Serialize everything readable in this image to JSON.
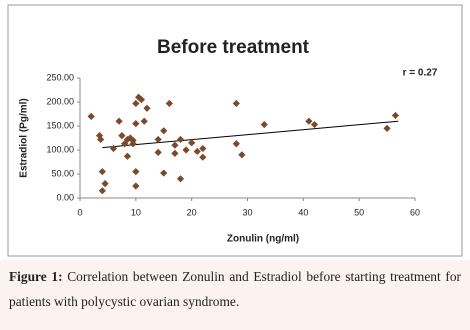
{
  "chart_data": {
    "type": "scatter",
    "title": "Before treatment",
    "annotation": "r = 0.27",
    "x_label": "Zonulin (ng/ml)",
    "y_label": "Estradiol (Pg/ml)",
    "xlim": [
      0,
      60
    ],
    "xticks": [
      0,
      10,
      20,
      30,
      40,
      50,
      60
    ],
    "ylim": [
      0,
      250
    ],
    "yticks": [
      {
        "value": 0,
        "label": "0.00"
      },
      {
        "value": 50,
        "label": "50.00"
      },
      {
        "value": 100,
        "label": "100.00"
      },
      {
        "value": 150,
        "label": "150.00"
      },
      {
        "value": 200,
        "label": "200.00"
      },
      {
        "value": 250,
        "label": "250.00"
      }
    ],
    "grid": false,
    "color": "#7b4a2c",
    "marker": "diamond",
    "x": [
      2,
      3.5,
      3.7,
      4,
      4,
      4.5,
      6,
      7,
      7.5,
      8,
      8.5,
      8.5,
      9,
      9.5,
      9.5,
      10,
      10,
      10,
      10,
      10.5,
      11,
      11.5,
      12,
      14,
      14,
      15,
      15,
      16,
      17,
      17,
      18,
      18,
      19,
      20,
      21,
      22,
      22,
      28,
      28,
      29,
      33,
      41,
      42,
      55,
      56.5
    ],
    "y": [
      170,
      130,
      122,
      55,
      15,
      30,
      103,
      160,
      130,
      113,
      87,
      122,
      125,
      113,
      120,
      155,
      197,
      55,
      25,
      210,
      205,
      160,
      187,
      95,
      122,
      140,
      52,
      197,
      110,
      93,
      122,
      40,
      100,
      115,
      97,
      103,
      85,
      197,
      113,
      90,
      153,
      160,
      153,
      145,
      172
    ],
    "trendline": {
      "x": [
        4,
        57
      ],
      "y": [
        105,
        160
      ]
    }
  },
  "caption": {
    "label": "Figure 1:",
    "text": "Correlation between Zonulin and Estradiol before starting treatment for patients with polycystic ovarian syndrome."
  }
}
